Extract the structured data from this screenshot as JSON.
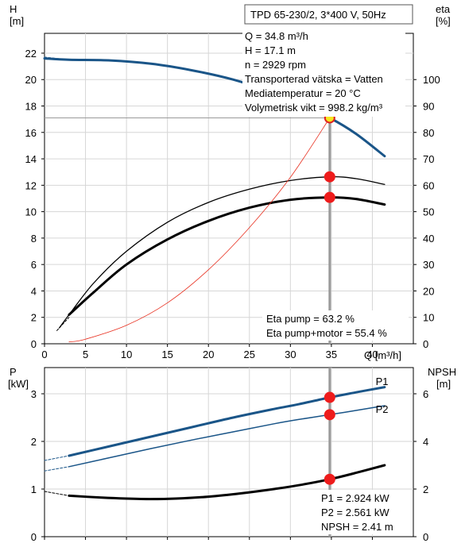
{
  "chart_data": [
    {
      "type": "line",
      "id": "head-eta",
      "header": "TPD 65-230/2, 3*400 V, 50Hz",
      "xlabel": "Q [m³/h]",
      "ylabel_line1": "H",
      "ylabel_line2": "[m]",
      "y2label_line1": "eta",
      "y2label_line2": "[%]",
      "xlim": [
        0,
        45
      ],
      "ylim": [
        0,
        23.5
      ],
      "y2lim": [
        0,
        117.5
      ],
      "x_ticks": [
        0,
        5,
        10,
        15,
        20,
        25,
        30,
        35,
        40
      ],
      "x_tick_labels": [
        "0",
        "5",
        "10",
        "15",
        "20",
        "25",
        "30",
        "35",
        "40"
      ],
      "y_ticks": [
        0,
        2,
        4,
        6,
        8,
        10,
        12,
        14,
        16,
        18,
        20,
        22
      ],
      "y_tick_labels": [
        "0",
        "2",
        "4",
        "6",
        "8",
        "10",
        "12",
        "14",
        "16",
        "18",
        "20",
        "22"
      ],
      "y2_ticks": [
        0,
        10,
        20,
        30,
        40,
        50,
        60,
        70,
        80,
        90,
        100
      ],
      "y2_tick_labels": [
        "0",
        "10",
        "20",
        "30",
        "40",
        "50",
        "60",
        "70",
        "80",
        "90",
        "100"
      ],
      "grid": true,
      "info_lines": [
        "Q = 34.8 m³/h",
        "H = 17.1 m",
        "n = 2929 rpm",
        "Transporterad vätska = Vatten",
        "Mediatemperatur = 20 °C",
        "Volymetrisk vikt = 998.2 kg/m³"
      ],
      "eta_lines": [
        "Eta pump = 63.2 %",
        "Eta pump+motor = 55.4 %"
      ],
      "series": [
        {
          "key": "head",
          "axis": "left",
          "color": "#1a5588",
          "width": 3,
          "x": [
            0,
            3,
            8,
            13,
            18,
            23,
            28,
            31,
            34.8,
            38,
            41.5
          ],
          "y": [
            21.6,
            21.5,
            21.45,
            21.2,
            20.7,
            20.0,
            19.0,
            18.2,
            17.1,
            15.9,
            14.2
          ]
        },
        {
          "key": "head-dashed",
          "axis": "left",
          "color": "#1a5588",
          "width": 1,
          "dashed": true,
          "x": [
            0,
            3
          ],
          "y": [
            21.7,
            21.5
          ]
        },
        {
          "key": "eta-pump",
          "axis": "right",
          "color": "#000000",
          "width": 1.3,
          "x": [
            1.8,
            3,
            6,
            10,
            15,
            20,
            25,
            30,
            34.8,
            38,
            41.5
          ],
          "y": [
            6,
            11,
            23,
            35,
            46,
            53.5,
            58.5,
            61.8,
            63.2,
            62.5,
            60.3
          ]
        },
        {
          "key": "eta-pump-motor",
          "axis": "right",
          "color": "#000000",
          "width": 3,
          "x": [
            3,
            6,
            10,
            15,
            20,
            25,
            30,
            34.8,
            38,
            41.5
          ],
          "y": [
            11,
            19.5,
            30,
            39.5,
            46.5,
            51.5,
            54.5,
            55.4,
            54.8,
            52.7
          ]
        },
        {
          "key": "eta-thin-dashed",
          "axis": "right",
          "color": "#000000",
          "width": 1,
          "dashed": true,
          "x": [
            1.5,
            3
          ],
          "y": [
            5,
            10
          ]
        },
        {
          "key": "system-curve",
          "axis": "left",
          "color": "#e83020",
          "width": 0.8,
          "x": [
            3,
            5,
            10,
            15,
            20,
            25,
            30,
            34.8
          ],
          "y": [
            0.14,
            0.35,
            1.4,
            3.1,
            5.6,
            8.8,
            12.6,
            17.1
          ]
        }
      ],
      "markers": [
        {
          "key": "op-point",
          "axis": "left",
          "x": 34.8,
          "y": 17.1,
          "fill": "#f5e621",
          "stroke": "#e02020"
        },
        {
          "key": "eta-pump-point",
          "axis": "right",
          "x": 34.8,
          "y": 63.2,
          "fill": "#ee1c1c",
          "stroke": "#ee1c1c"
        },
        {
          "key": "eta-motor-point",
          "axis": "right",
          "x": 34.8,
          "y": 55.4,
          "fill": "#ee1c1c",
          "stroke": "#ee1c1c"
        }
      ],
      "duty_line": {
        "x": 34.8,
        "y": 17.1
      }
    },
    {
      "type": "line",
      "id": "power-npsh",
      "ylabel_line1": "P",
      "ylabel_line2": "[kW]",
      "y2label_line1": "NPSH",
      "y2label_line2": "[m]",
      "xlim": [
        0,
        45
      ],
      "ylim": [
        0,
        3.55
      ],
      "y2lim": [
        0,
        7.1
      ],
      "x_ticks": [
        0,
        5,
        10,
        15,
        20,
        25,
        30,
        35,
        40
      ],
      "y_ticks": [
        0,
        1,
        2,
        3
      ],
      "y_tick_labels": [
        "0",
        "1",
        "2",
        "3"
      ],
      "y2_ticks": [
        0,
        2,
        4,
        6
      ],
      "y2_tick_labels": [
        "0",
        "2",
        "4",
        "6"
      ],
      "grid": true,
      "info_lines": [
        "P1 = 2.924 kW",
        "P2 = 2.561 kW",
        "NPSH = 2.41 m"
      ],
      "curve_labels": [
        {
          "text": "P1",
          "x": 40.4,
          "y": 3.18,
          "color": "#1a5588"
        },
        {
          "text": "P2",
          "x": 40.4,
          "y": 2.6,
          "color": "#1a5588"
        }
      ],
      "series": [
        {
          "key": "p1",
          "axis": "left",
          "color": "#1a5588",
          "width": 3,
          "x": [
            3,
            8,
            13,
            18,
            23,
            28,
            31,
            34.8,
            38,
            41.5
          ],
          "y": [
            1.7,
            1.9,
            2.1,
            2.3,
            2.5,
            2.68,
            2.78,
            2.924,
            3.03,
            3.14
          ]
        },
        {
          "key": "p1-dashed",
          "axis": "left",
          "color": "#1a5588",
          "width": 1,
          "dashed": true,
          "x": [
            0,
            3
          ],
          "y": [
            1.6,
            1.7
          ]
        },
        {
          "key": "p2",
          "axis": "left",
          "color": "#1a5588",
          "width": 1.5,
          "x": [
            3,
            8,
            13,
            18,
            23,
            28,
            31,
            34.8,
            38,
            41.5
          ],
          "y": [
            1.47,
            1.66,
            1.85,
            2.03,
            2.2,
            2.37,
            2.46,
            2.561,
            2.65,
            2.75
          ]
        },
        {
          "key": "p2-dashed",
          "axis": "left",
          "color": "#1a5588",
          "width": 1,
          "dashed": true,
          "x": [
            0,
            3
          ],
          "y": [
            1.38,
            1.47
          ]
        },
        {
          "key": "npsh",
          "axis": "right",
          "color": "#000000",
          "width": 3,
          "x": [
            3,
            7,
            10,
            13,
            16,
            20,
            24,
            28,
            31,
            34.8,
            38,
            41.5
          ],
          "y": [
            1.72,
            1.64,
            1.6,
            1.58,
            1.6,
            1.68,
            1.82,
            2.0,
            2.16,
            2.41,
            2.68,
            3.0
          ]
        },
        {
          "key": "npsh-dashed",
          "axis": "right",
          "color": "#000000",
          "width": 1,
          "dashed": true,
          "x": [
            0,
            3
          ],
          "y": [
            1.9,
            1.72
          ]
        }
      ],
      "markers": [
        {
          "key": "p1-point",
          "axis": "left",
          "x": 34.8,
          "y": 2.924,
          "fill": "#ee1c1c",
          "stroke": "#ee1c1c"
        },
        {
          "key": "p2-point",
          "axis": "left",
          "x": 34.8,
          "y": 2.561,
          "fill": "#ee1c1c",
          "stroke": "#ee1c1c"
        },
        {
          "key": "npsh-point",
          "axis": "right",
          "x": 34.8,
          "y": 2.41,
          "fill": "#ee1c1c",
          "stroke": "#ee1c1c"
        }
      ],
      "duty_line": {
        "x": 34.8
      }
    }
  ]
}
